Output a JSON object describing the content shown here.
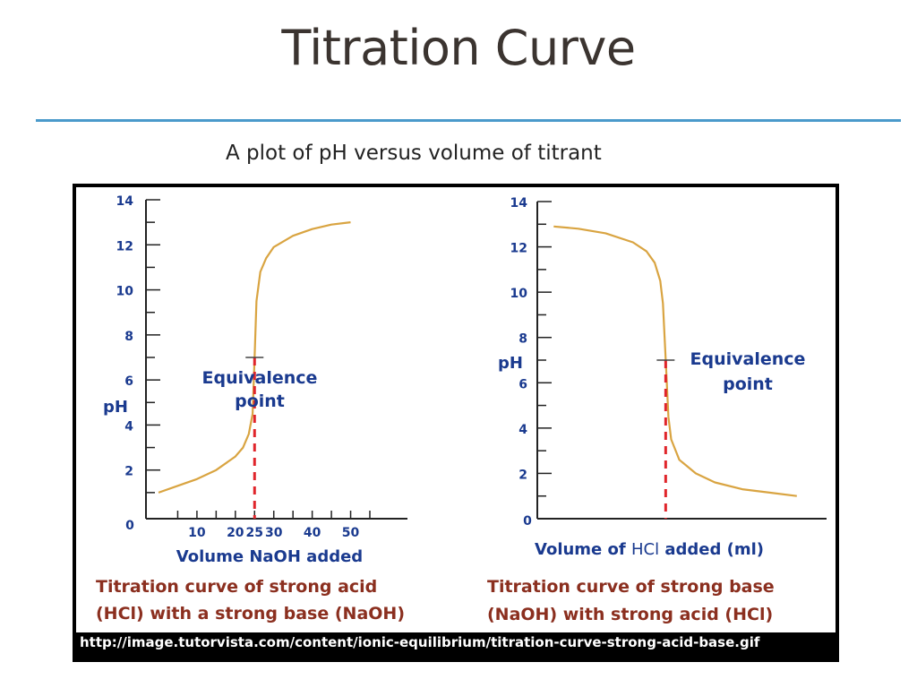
{
  "slide": {
    "title": "Titration Curve",
    "subtitle": "A plot of pH versus volume of titrant"
  },
  "source_url": "http://image.tutorvista.com/content/ionic-equilibrium/titration-curve-strong-acid-base.gif",
  "colors": {
    "accent_rule": "#4a9acb",
    "curve": "#d9a441",
    "equivalence": "#e0252b",
    "label_blue": "#1a3a8f",
    "caption_brown": "#8b2f1f"
  },
  "chart_data": [
    {
      "type": "line",
      "title": "",
      "ylabel": "pH",
      "xlabel": "Volume NaOH added",
      "caption": [
        "Titration curve of strong acid",
        "(HCl) with a strong base (NaOH)"
      ],
      "ylim": [
        0,
        14
      ],
      "xlim": [
        0,
        55
      ],
      "y_ticks": [
        2,
        4,
        6,
        8,
        10,
        12,
        14
      ],
      "y_zero_label": "0",
      "x_ticks": [
        10,
        20,
        25,
        30,
        40,
        50
      ],
      "grid": false,
      "annotation": {
        "text": [
          "Equivalence",
          "point"
        ],
        "x": 25,
        "y": 7
      },
      "series": [
        {
          "x": [
            0,
            5,
            10,
            15,
            20,
            22,
            23.5,
            24.5,
            25,
            25.5,
            26.5,
            28,
            30,
            35,
            40,
            45,
            50
          ],
          "y": [
            1.0,
            1.3,
            1.6,
            2.0,
            2.6,
            3.0,
            3.6,
            4.5,
            7.0,
            9.5,
            10.8,
            11.4,
            11.9,
            12.4,
            12.7,
            12.9,
            13.0
          ]
        }
      ]
    },
    {
      "type": "line",
      "title": "",
      "ylabel": "pH",
      "xlabel_parts": [
        "Volume of ",
        "HCl",
        " added (ml)"
      ],
      "caption": [
        "Titration curve of strong base",
        "(NaOH) with strong acid (HCl)"
      ],
      "ylim": [
        0,
        14
      ],
      "xlim": [
        0,
        100
      ],
      "y_ticks": [
        0,
        2,
        4,
        6,
        8,
        10,
        12,
        14
      ],
      "x_ticks": [],
      "grid": false,
      "annotation": {
        "text": [
          "Equivalence",
          "point"
        ],
        "x": 47,
        "y": 7
      },
      "series": [
        {
          "x": [
            6,
            15,
            25,
            35,
            40,
            43,
            45,
            46,
            47,
            48,
            49,
            52,
            58,
            65,
            75,
            85,
            95
          ],
          "y": [
            12.9,
            12.8,
            12.6,
            12.2,
            11.8,
            11.3,
            10.5,
            9.5,
            7.0,
            4.5,
            3.5,
            2.6,
            2.0,
            1.6,
            1.3,
            1.15,
            1.0
          ]
        }
      ]
    }
  ]
}
